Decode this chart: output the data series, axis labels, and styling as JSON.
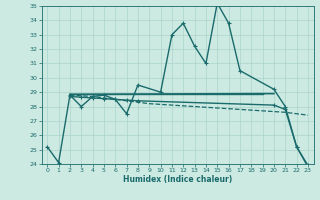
{
  "xlabel": "Humidex (Indice chaleur)",
  "ylabel": "",
  "xlim": [
    -0.5,
    23.5
  ],
  "ylim": [
    24,
    35
  ],
  "yticks": [
    24,
    25,
    26,
    27,
    28,
    29,
    30,
    31,
    32,
    33,
    34,
    35
  ],
  "xticks": [
    0,
    1,
    2,
    3,
    4,
    5,
    6,
    7,
    8,
    9,
    10,
    11,
    12,
    13,
    14,
    15,
    16,
    17,
    18,
    19,
    20,
    21,
    22,
    23
  ],
  "background_color": "#cce9e2",
  "grid_color": "#aad4cc",
  "line_color": "#1a6b6b",
  "lines": [
    {
      "x": [
        0,
        1,
        2,
        3,
        4,
        5,
        6,
        7,
        8,
        10,
        11,
        12,
        13,
        14,
        15,
        16,
        17,
        20,
        21,
        22,
        23
      ],
      "y": [
        25.2,
        24.1,
        28.8,
        28.0,
        28.7,
        28.8,
        28.5,
        27.5,
        29.5,
        29.0,
        33.0,
        33.8,
        32.2,
        31.0,
        35.2,
        33.8,
        30.5,
        29.2,
        28.0,
        25.2,
        23.8
      ],
      "linewidth": 1.0,
      "linestyle": "-",
      "marker": "+"
    },
    {
      "x": [
        2,
        19,
        20
      ],
      "y": [
        28.85,
        28.9,
        28.9
      ],
      "linewidth": 1.2,
      "linestyle": "-",
      "marker": null
    },
    {
      "x": [
        2,
        19
      ],
      "y": [
        28.85,
        28.85
      ],
      "linewidth": 1.0,
      "linestyle": "-",
      "marker": null
    },
    {
      "x": [
        2,
        3,
        4,
        5,
        6,
        7,
        8,
        9,
        10,
        11,
        12,
        13,
        14,
        15,
        16,
        17,
        18,
        19,
        20,
        21,
        22,
        23
      ],
      "y": [
        28.8,
        28.75,
        28.7,
        28.6,
        28.5,
        28.4,
        28.3,
        28.2,
        28.15,
        28.1,
        28.05,
        28.0,
        27.95,
        27.9,
        27.85,
        27.8,
        27.75,
        27.7,
        27.65,
        27.6,
        27.5,
        27.4
      ],
      "linewidth": 0.9,
      "linestyle": "--",
      "marker": null
    },
    {
      "x": [
        2,
        3,
        4,
        5,
        6,
        7,
        8,
        20,
        21,
        22,
        23
      ],
      "y": [
        28.7,
        28.65,
        28.6,
        28.55,
        28.5,
        28.45,
        28.4,
        28.1,
        27.8,
        25.2,
        23.9
      ],
      "linewidth": 1.0,
      "linestyle": "-",
      "marker": "+"
    }
  ]
}
